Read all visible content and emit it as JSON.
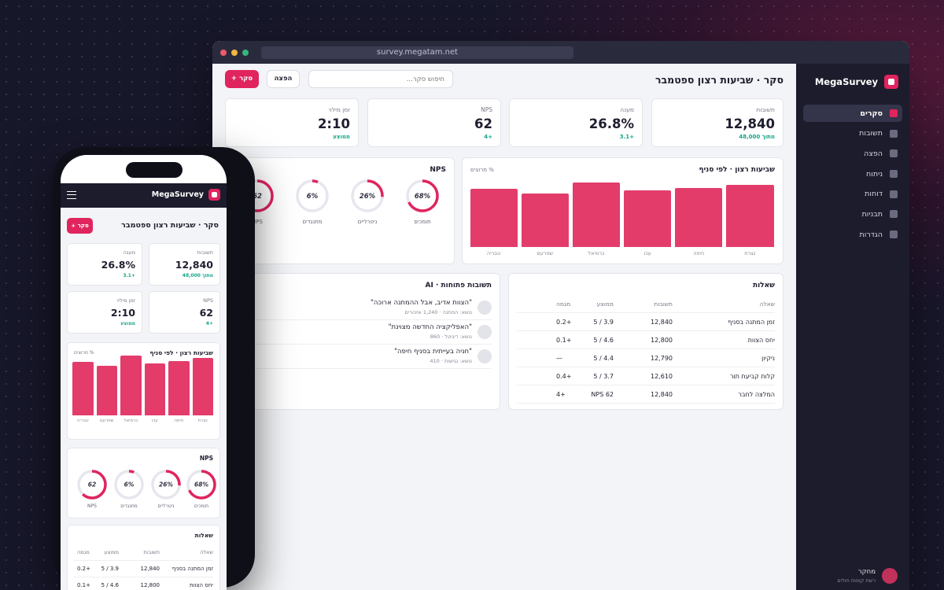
{
  "window": {
    "url": "survey.megatam.net"
  },
  "brand": {
    "name": "MegaSurvey"
  },
  "nav": {
    "items": [
      {
        "label": "סקרים",
        "active": true
      },
      {
        "label": "תשובות"
      },
      {
        "label": "הפצה"
      },
      {
        "label": "ניתוח"
      },
      {
        "label": "דוחות"
      },
      {
        "label": "תבניות"
      },
      {
        "label": "הגדרות"
      }
    ]
  },
  "user": {
    "name": "מחקר",
    "org": "רשת קופות חולים"
  },
  "header": {
    "title": "סקר · שביעות רצון ספטמבר",
    "search_placeholder": "חיפוש סקר...",
    "distribute_label": "הפצה",
    "new_survey_label": "+ סקר"
  },
  "kpis": [
    {
      "label": "תשובות",
      "value": "12,840",
      "sub": "מתוך 48,000"
    },
    {
      "label": "מענה",
      "value": "26.8%",
      "sub": "+3.1"
    },
    {
      "label": "NPS",
      "value": "62",
      "sub": "+4"
    },
    {
      "label": "זמן מילוי",
      "value": "2:10",
      "sub": "ממוצע"
    }
  ],
  "satisfaction": {
    "title": "שביעות רצון · לפי סניף",
    "note": "% מרוצים"
  },
  "chart_data": {
    "type": "bar",
    "title": "שביעות רצון · לפי סניף",
    "ylabel": "% מרוצים",
    "categories": [
      "נצרת",
      "חיפה",
      "עכו",
      "כרמיאל",
      "שפרעם",
      "טבריה"
    ],
    "values": [
      77,
      73,
      70,
      80,
      66,
      72
    ],
    "ylim": [
      0,
      100
    ]
  },
  "nps": {
    "title": "NPS",
    "items": [
      {
        "value": "68%",
        "label": "תומכים",
        "fraction": 0.68,
        "color": "#e0245e"
      },
      {
        "value": "26%",
        "label": "ניטרליים",
        "fraction": 0.26,
        "color": "#e0245e"
      },
      {
        "value": "6%",
        "label": "מתנגדים",
        "fraction": 0.06,
        "color": "#e0245e"
      },
      {
        "value": "62",
        "label": "NPS",
        "fraction": 0.62,
        "color": "#e0245e"
      }
    ]
  },
  "questions": {
    "title": "שאלות",
    "columns": [
      "שאלה",
      "תשובות",
      "ממוצע",
      "מגמה"
    ],
    "rows": [
      [
        "זמן המתנה בסניף",
        "12,840",
        "3.9 / 5",
        "+0.2"
      ],
      [
        "יחס הצוות",
        "12,800",
        "4.6 / 5",
        "+0.1"
      ],
      [
        "ניקיון",
        "12,790",
        "4.4 / 5",
        "—"
      ],
      [
        "קלות קביעת תור",
        "12,610",
        "3.7 / 5",
        "+0.4"
      ],
      [
        "המלצה לחבר",
        "12,840",
        "NPS 62",
        "+4"
      ]
    ]
  },
  "open_answers": {
    "title": "תשובות פתוחות · AI",
    "items": [
      {
        "text": "\"הצוות אדיב, אבל ההמתנה ארוכה\"",
        "meta": "נושא: המתנה · 1,240 אזכורים"
      },
      {
        "text": "\"האפליקציה החדשה מצוינת\"",
        "meta": "נושא: דיגיטל · 860"
      },
      {
        "text": "\"חניה בעייתית בסניף חיפה\"",
        "meta": "נושא: נגישות · 410"
      }
    ]
  }
}
